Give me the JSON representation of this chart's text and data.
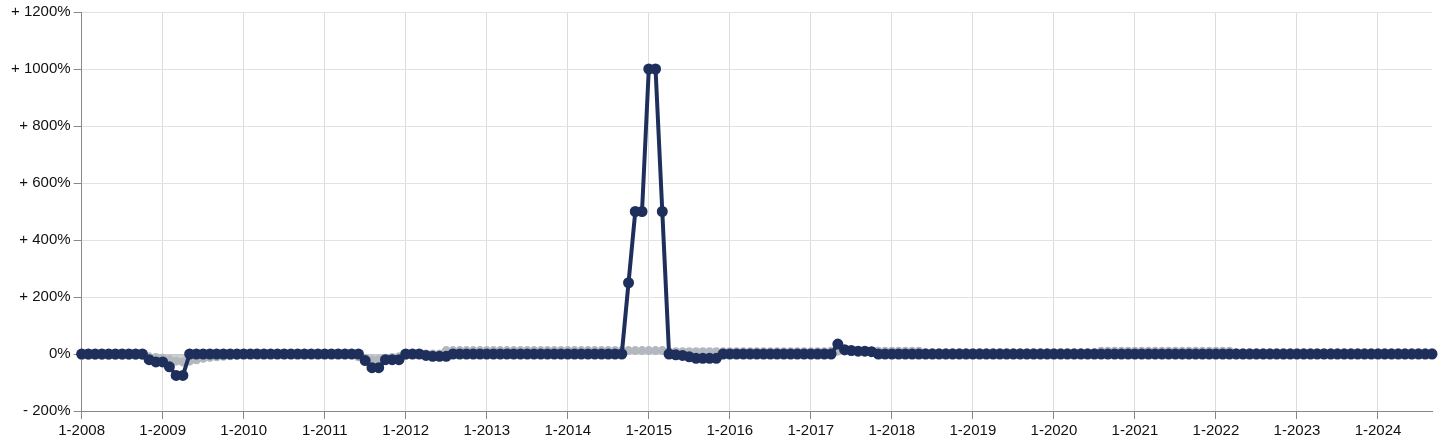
{
  "chart_data": {
    "type": "line",
    "categories": [
      "1-2008",
      null,
      null,
      null,
      null,
      null,
      null,
      null,
      null,
      null,
      null,
      null,
      "1-2009",
      null,
      null,
      null,
      null,
      null,
      null,
      null,
      null,
      null,
      null,
      null,
      "1-2010",
      null,
      null,
      null,
      null,
      null,
      null,
      null,
      null,
      null,
      null,
      null,
      "1-2011",
      null,
      null,
      null,
      null,
      null,
      null,
      null,
      null,
      null,
      null,
      null,
      "1-2012",
      null,
      null,
      null,
      null,
      null,
      null,
      null,
      null,
      null,
      null,
      null,
      "1-2013",
      null,
      null,
      null,
      null,
      null,
      null,
      null,
      null,
      null,
      null,
      null,
      "1-2014",
      null,
      null,
      null,
      null,
      null,
      null,
      null,
      null,
      null,
      null,
      null,
      "1-2015",
      null,
      null,
      null,
      null,
      null,
      null,
      null,
      null,
      null,
      null,
      null,
      "1-2016",
      null,
      null,
      null,
      null,
      null,
      null,
      null,
      null,
      null,
      null,
      null,
      "1-2017",
      null,
      null,
      null,
      null,
      null,
      null,
      null,
      null,
      null,
      null,
      null,
      "1-2018",
      null,
      null,
      null,
      null,
      null,
      null,
      null,
      null,
      null,
      null,
      null,
      "1-2019",
      null,
      null,
      null,
      null,
      null,
      null,
      null,
      null,
      null,
      null,
      null,
      "1-2020",
      null,
      null,
      null,
      null,
      null,
      null,
      null,
      null,
      null,
      null,
      null,
      "1-2021",
      null,
      null,
      null,
      null,
      null,
      null,
      null,
      null,
      null,
      null,
      null,
      "1-2022",
      null,
      null,
      null,
      null,
      null,
      null,
      null,
      null,
      null,
      null,
      null,
      "1-2023",
      null,
      null,
      null,
      null,
      null,
      null,
      null,
      null,
      null,
      null,
      null,
      "1-2024",
      null,
      null,
      null,
      null,
      null,
      null,
      null,
      null
    ],
    "series": [
      {
        "type": "area",
        "color": "#b3b8be",
        "values": [
          -5,
          -5,
          -5,
          -5,
          -5,
          -5,
          -5,
          -5,
          -5,
          -5,
          -10,
          -12,
          -15,
          -20,
          -25,
          -28,
          -25,
          -20,
          -15,
          -12,
          -10,
          -8,
          -6,
          -5,
          0,
          0,
          0,
          0,
          0,
          0,
          0,
          0,
          0,
          0,
          0,
          0,
          0,
          0,
          3,
          3,
          3,
          -10,
          -15,
          -20,
          -20,
          -15,
          -12,
          -10,
          -5,
          0,
          0,
          0,
          0,
          0,
          12,
          12,
          12,
          12,
          12,
          12,
          12,
          12,
          12,
          12,
          12,
          12,
          12,
          12,
          12,
          12,
          12,
          12,
          12,
          12,
          12,
          12,
          12,
          12,
          12,
          12,
          12,
          12,
          12,
          12,
          12,
          12,
          12,
          8,
          8,
          8,
          8,
          8,
          8,
          8,
          8,
          8,
          8,
          8,
          8,
          8,
          8,
          8,
          8,
          8,
          8,
          8,
          8,
          8,
          8,
          8,
          8,
          10,
          10,
          10,
          10,
          10,
          10,
          10,
          10,
          10,
          10,
          10,
          10,
          10,
          10,
          5,
          5,
          5,
          5,
          5,
          5,
          5,
          5,
          5,
          5,
          5,
          5,
          5,
          5,
          5,
          5,
          5,
          5,
          5,
          5,
          5,
          5,
          5,
          5,
          5,
          5,
          10,
          10,
          10,
          10,
          10,
          10,
          10,
          10,
          10,
          10,
          10,
          10,
          10,
          10,
          10,
          10,
          10,
          10,
          10,
          10,
          5,
          5,
          5,
          5,
          5,
          5,
          5,
          5,
          5,
          5,
          5,
          5,
          5,
          5,
          5,
          5,
          5,
          5,
          5,
          5,
          5,
          5,
          5,
          5,
          5,
          5,
          5,
          5,
          5,
          5
        ]
      },
      {
        "type": "line",
        "color": "#1f2f5c",
        "values": [
          0,
          0,
          0,
          0,
          0,
          0,
          0,
          0,
          0,
          0,
          -20,
          -28,
          -28,
          -45,
          -75,
          -75,
          0,
          0,
          0,
          0,
          0,
          0,
          0,
          0,
          0,
          0,
          0,
          0,
          0,
          0,
          0,
          0,
          0,
          0,
          0,
          0,
          0,
          0,
          0,
          0,
          0,
          0,
          -23,
          -48,
          -48,
          -20,
          -20,
          -20,
          0,
          0,
          0,
          -5,
          -8,
          -8,
          -8,
          0,
          0,
          0,
          0,
          0,
          0,
          0,
          0,
          0,
          0,
          0,
          0,
          0,
          0,
          0,
          0,
          0,
          0,
          0,
          0,
          0,
          0,
          0,
          0,
          0,
          0,
          250,
          500,
          500,
          1000,
          1000,
          500,
          0,
          -3,
          -5,
          -10,
          -15,
          -15,
          -15,
          -15,
          0,
          0,
          0,
          0,
          0,
          0,
          0,
          0,
          0,
          0,
          0,
          0,
          0,
          0,
          0,
          0,
          0,
          35,
          15,
          12,
          10,
          10,
          8,
          0,
          0,
          0,
          0,
          0,
          0,
          0,
          0,
          0,
          0,
          0,
          0,
          0,
          0,
          0,
          0,
          0,
          0,
          0,
          0,
          0,
          0,
          0,
          0,
          0,
          0,
          0,
          0,
          0,
          0,
          0,
          0,
          0,
          0,
          0,
          0,
          0,
          0,
          0,
          0,
          0,
          0,
          0,
          0,
          0,
          0,
          0,
          0,
          0,
          0,
          0,
          0,
          0,
          0,
          0,
          0,
          0,
          0,
          0,
          0,
          0,
          0,
          0,
          0,
          0,
          0,
          0,
          0,
          0,
          0,
          0,
          0,
          0,
          0,
          0,
          0,
          0,
          0,
          0,
          0,
          0,
          0,
          0
        ]
      }
    ],
    "ylim": [
      -200,
      1200
    ],
    "yticks": [
      {
        "value": -200,
        "label": "- 200%"
      },
      {
        "value": 0,
        "label": "0%"
      },
      {
        "value": 200,
        "label": "+ 200%"
      },
      {
        "value": 400,
        "label": "+ 400%"
      },
      {
        "value": 600,
        "label": "+ 600%"
      },
      {
        "value": 800,
        "label": "+ 800%"
      },
      {
        "value": 1000,
        "label": "+ 1000%"
      },
      {
        "value": 1200,
        "label": "+ 1200%"
      }
    ],
    "grid": true,
    "legend": false,
    "marker": "circle",
    "line_style": "solid"
  }
}
